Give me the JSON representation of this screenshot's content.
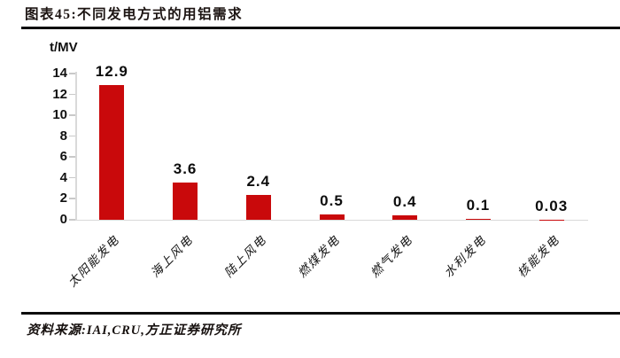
{
  "header": {
    "title": "图表45:不同发电方式的用铝需求"
  },
  "footer": {
    "source": "资料来源:IAI,CRU,方正证券研究所"
  },
  "chart_data": {
    "type": "bar",
    "title": "图表45:不同发电方式的用铝需求",
    "unit_label": "t/MV",
    "categories": [
      "太阳能发电",
      "海上风电",
      "陆上风电",
      "燃煤发电",
      "燃气发电",
      "水利发电",
      "核能发电"
    ],
    "values": [
      12.9,
      3.6,
      2.4,
      0.5,
      0.4,
      0.1,
      0.03
    ],
    "value_labels": [
      "12.9",
      "3.6",
      "2.4",
      "0.5",
      "0.4",
      "0.1",
      "0.03"
    ],
    "y_ticks": [
      0,
      2,
      4,
      6,
      8,
      10,
      12,
      14
    ],
    "ylim": [
      0,
      14
    ],
    "xlabel": "",
    "ylabel": "t/MV",
    "grid": false,
    "legend": false,
    "bar_color": "#C9090B",
    "axis_color": "#d9d9d9",
    "tick_color": "#c9c9c9",
    "source_text": "资料来源:IAI,CRU,方正证券研究所"
  }
}
